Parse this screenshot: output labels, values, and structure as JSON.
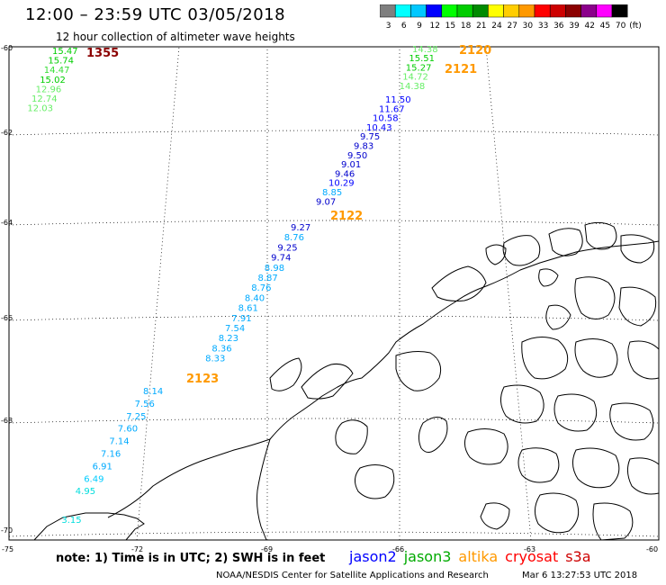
{
  "header": {
    "title": "12:00 – 23:59 UTC 03/05/2018",
    "subtitle": "12 hour collection of altimeter wave heights"
  },
  "color_scale": {
    "labels": [
      "3",
      "6",
      "9",
      "12",
      "15",
      "18",
      "21",
      "24",
      "27",
      "30",
      "33",
      "36",
      "39",
      "42",
      "45",
      "70"
    ],
    "unit": "(ft)",
    "colors": [
      "#7f7f7f",
      "#00ffff",
      "#00c8ff",
      "#0000ff",
      "#00ff00",
      "#00cd00",
      "#008b00",
      "#ffff00",
      "#ffcd00",
      "#ff9900",
      "#ff0000",
      "#cd0000",
      "#8b0000",
      "#8b008b",
      "#ff00ff",
      "#000000"
    ]
  },
  "axes": {
    "lat_labels": [
      "-60",
      "-62",
      "-64",
      "-66",
      "-68",
      "-70"
    ],
    "lon_labels": [
      "-75",
      "-72",
      "-69",
      "-66",
      "-63",
      "-60"
    ]
  },
  "tracks": [
    {
      "pass": "1355",
      "pass_color": "#8b0000",
      "values": [
        "15.47",
        "15.74",
        "14.47",
        "15.02",
        "12.96",
        "12.74",
        "12.03"
      ],
      "colors": [
        "#00cd00",
        "#00cd00",
        "#33dd33",
        "#00cd00",
        "#66ee66",
        "#66ee66",
        "#66ee66"
      ]
    },
    {
      "pass": "2120",
      "pass_color": "#ff9900",
      "values": [
        "14.38",
        "15.51",
        "15.27",
        "14.72",
        "14.38"
      ],
      "colors": [
        "#66ee66",
        "#00cd00",
        "#00cd00",
        "#66ee66",
        "#66ee66"
      ]
    },
    {
      "pass": "2121",
      "pass_color": "#ff9900",
      "values": [
        "11.50",
        "11.67",
        "10.58",
        "10.43",
        "9.75",
        "9.83",
        "9.50",
        "9.01",
        "9.46",
        "10.29",
        "8.85",
        "9.07"
      ],
      "colors": [
        "#0000ff",
        "#0000ff",
        "#0000ff",
        "#0000ff",
        "#0000cd",
        "#0000cd",
        "#0000cd",
        "#0000cd",
        "#0000cd",
        "#0000ff",
        "#00aaff",
        "#0000cd"
      ]
    },
    {
      "pass": "2122",
      "pass_color": "#ff9900",
      "values": [
        "9.27",
        "8.76",
        "9.25",
        "9.74",
        "8.98",
        "8.87",
        "8.76",
        "8.40",
        "8.61",
        "7.91",
        "7.54",
        "8.23",
        "8.36",
        "8.33"
      ],
      "colors": [
        "#0000cd",
        "#00aaff",
        "#0000cd",
        "#0000cd",
        "#00aaff",
        "#00aaff",
        "#00aaff",
        "#00aaff",
        "#00aaff",
        "#00aaff",
        "#00aaff",
        "#00aaff",
        "#00aaff",
        "#00aaff"
      ]
    },
    {
      "pass": "2123",
      "pass_color": "#ff9900",
      "values": [
        "8.14",
        "7.56",
        "7.25",
        "7.60",
        "7.14",
        "7.16",
        "6.91",
        "6.49",
        "4.95",
        "3.15"
      ],
      "colors": [
        "#00aaff",
        "#00aaff",
        "#00aaff",
        "#00aaff",
        "#00aaff",
        "#00aaff",
        "#00aaff",
        "#00ccff",
        "#00dddd",
        "#00dddd"
      ]
    }
  ],
  "footer": {
    "note": "note:  1) Time is in UTC;  2) SWH is in feet",
    "legend": [
      {
        "name": "jason2",
        "color": "#0000ff"
      },
      {
        "name": "jason3",
        "color": "#00aa00"
      },
      {
        "name": "altika",
        "color": "#ff9900"
      },
      {
        "name": "cryosat",
        "color": "#ff0000"
      },
      {
        "name": "s3a",
        "color": "#cd0000"
      }
    ],
    "credit": "NOAA/NESDIS Center for Satellite Applications and Research",
    "timestamp": "Mar  6 13:27:53 UTC 2018"
  }
}
